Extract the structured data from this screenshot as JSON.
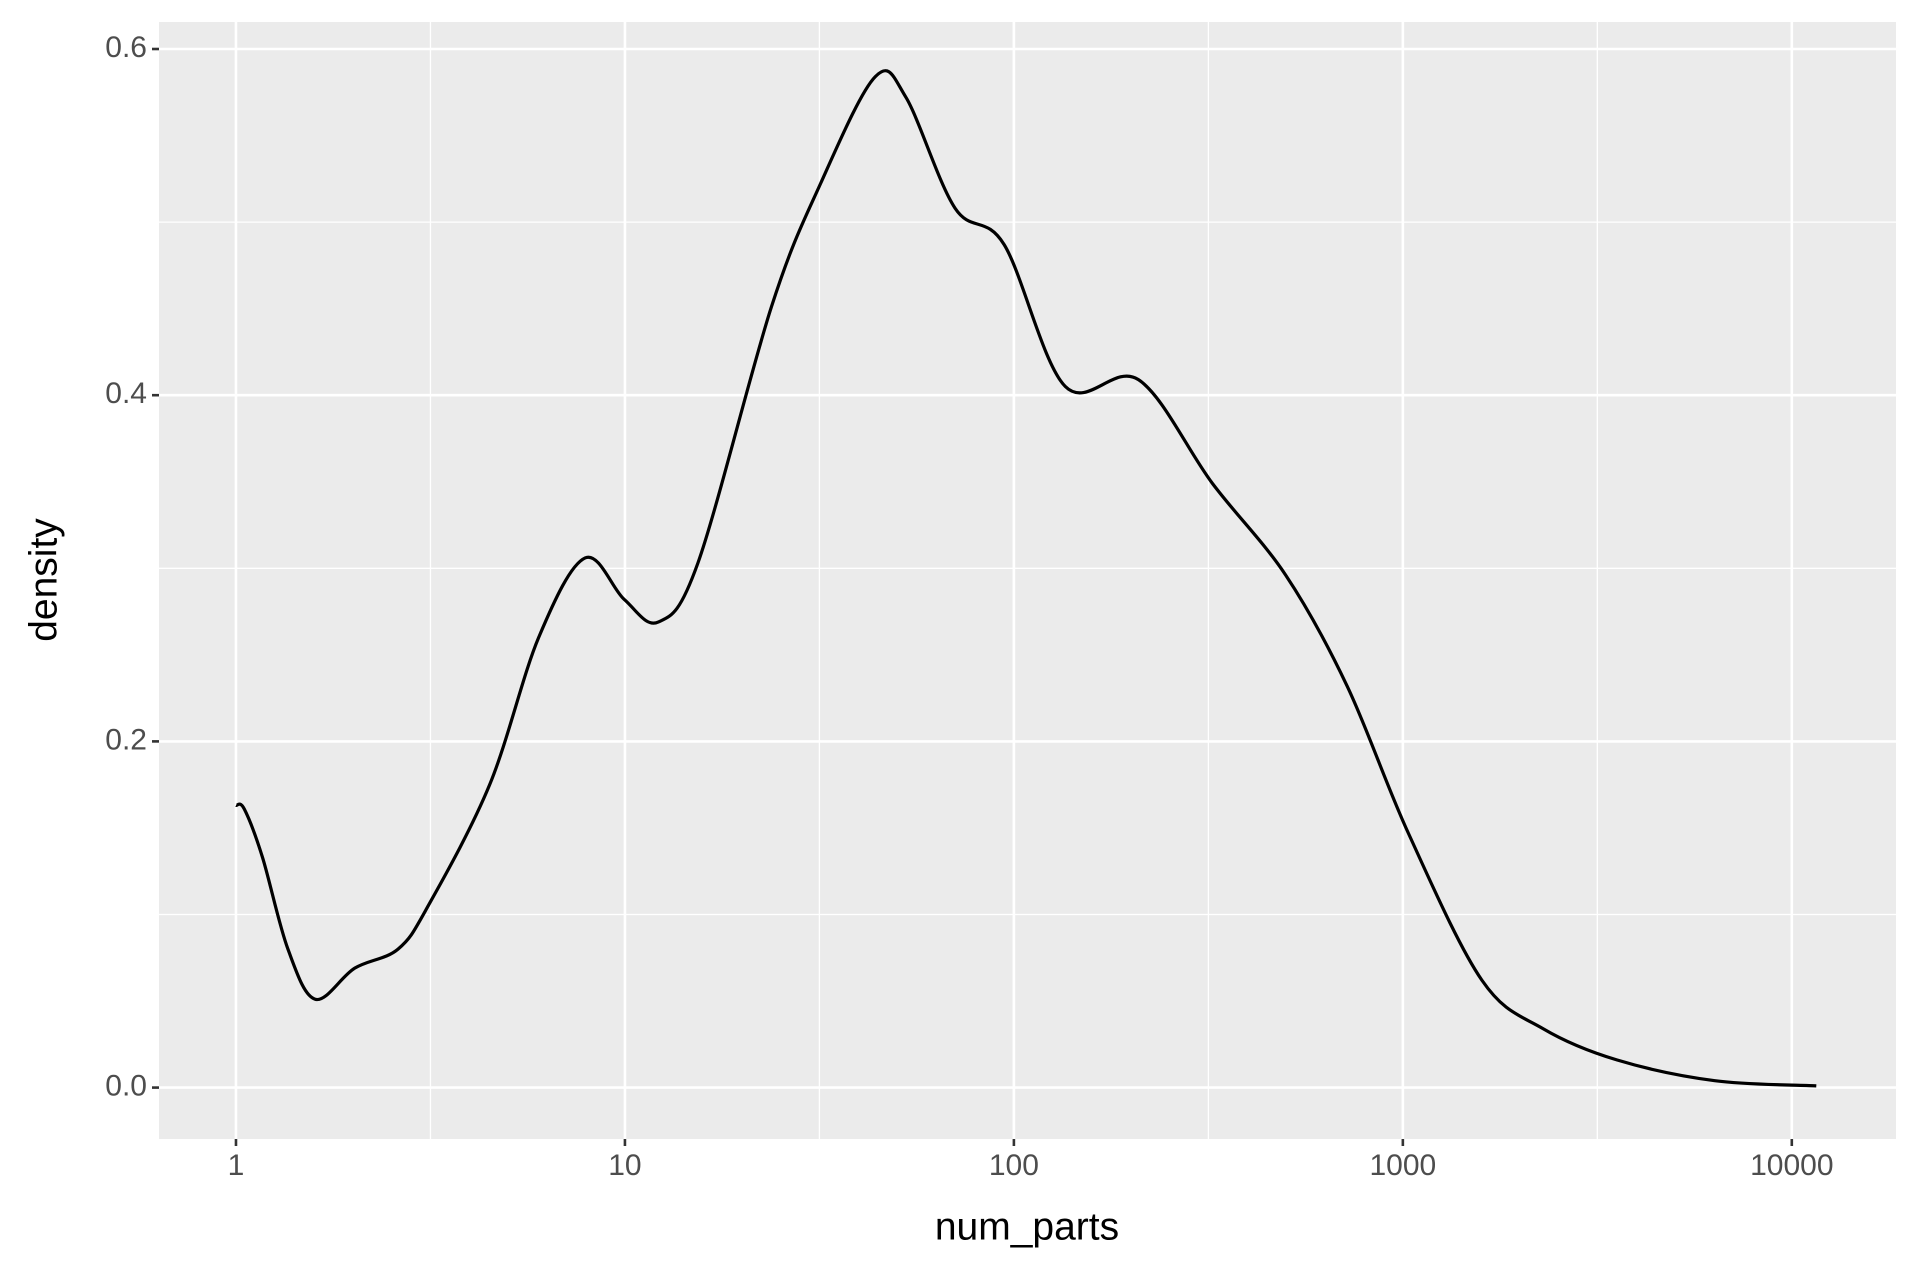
{
  "chart_data": {
    "type": "line",
    "x_label": "num_parts",
    "y_label": "density",
    "x": [
      1,
      1.05,
      1.17,
      1.36,
      1.6,
      2.02,
      2.61,
      3.12,
      4.49,
      6.0,
      7.9,
      9.96,
      12.2,
      15.4,
      23.8,
      31.8,
      44.0,
      52.8,
      70.6,
      94.4,
      135.6,
      209,
      324,
      500,
      719,
      1033,
      1597,
      2295,
      3548,
      6339,
      11560
    ],
    "series": [
      {
        "color": "#000000",
        "values": [
          0.163,
          0.161,
          0.133,
          0.08,
          0.051,
          0.069,
          0.08,
          0.105,
          0.175,
          0.26,
          0.306,
          0.282,
          0.269,
          0.303,
          0.451,
          0.522,
          0.584,
          0.572,
          0.508,
          0.487,
          0.405,
          0.409,
          0.349,
          0.296,
          0.232,
          0.147,
          0.062,
          0.034,
          0.016,
          0.004,
          0.001
        ]
      }
    ],
    "xlog": true,
    "xlim": [
      0.634,
      18530
    ],
    "ylim": [
      -0.0297,
      0.6156
    ],
    "xticks": [
      1,
      10,
      100,
      1000,
      10000
    ],
    "yticks": [
      {
        "value": 0,
        "label": "0.0"
      },
      0.2,
      0.4,
      0.6
    ],
    "x_minor_grid": [
      3.1623,
      31.623,
      316.23,
      3162.3
    ],
    "y_minor_grid": [
      0.1,
      0.3,
      0.5
    ],
    "grid": true,
    "panel_color": "#ebebeb",
    "grid_color": "#ffffff"
  }
}
